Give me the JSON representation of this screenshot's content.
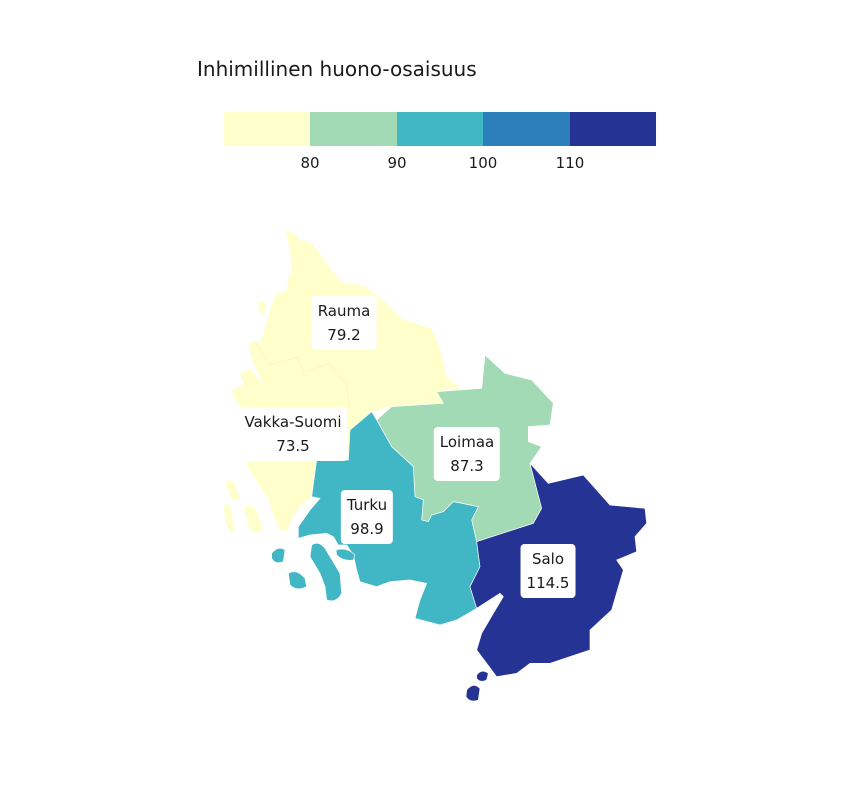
{
  "legend": {
    "title": "Inhimillinen huono-osaisuus",
    "breaks": [
      "80",
      "90",
      "100",
      "110"
    ],
    "colors": [
      "#ffffcc",
      "#a1dab4",
      "#41b6c4",
      "#2c7fb8",
      "#253494"
    ]
  },
  "regions": [
    {
      "name": "Rauma",
      "value": "79.2",
      "color": "#ffffcc"
    },
    {
      "name": "Vakka-Suomi",
      "value": "73.5",
      "color": "#ffffcc"
    },
    {
      "name": "Loimaa",
      "value": "87.3",
      "color": "#a1dab4"
    },
    {
      "name": "Turku",
      "value": "98.9",
      "color": "#41b6c4"
    },
    {
      "name": "Salo",
      "value": "114.5",
      "color": "#253494"
    }
  ]
}
